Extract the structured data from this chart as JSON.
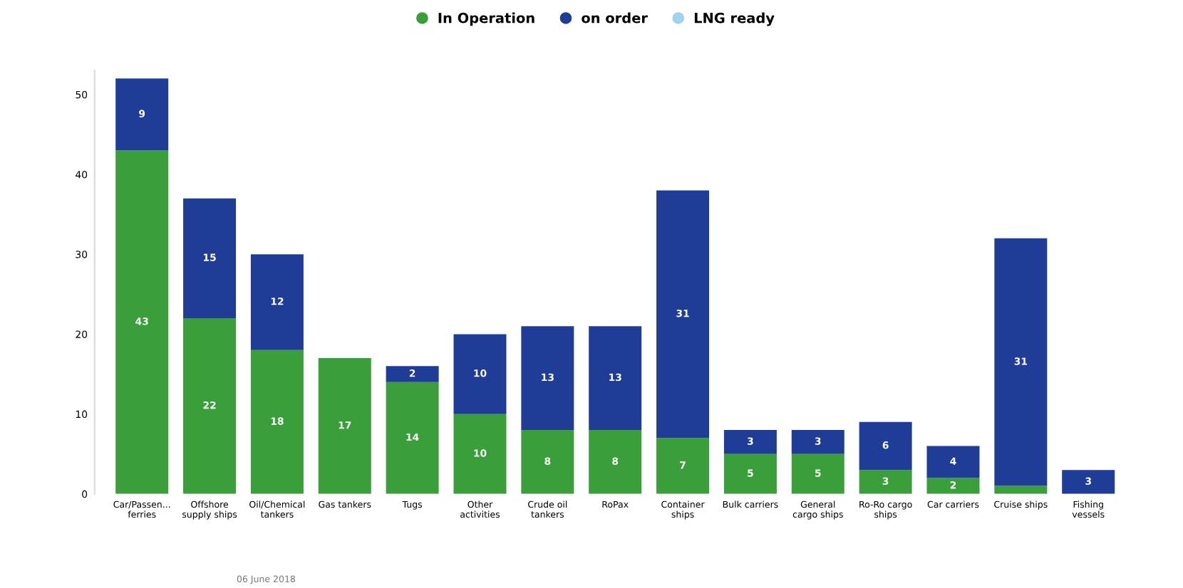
{
  "chart_data": {
    "type": "bar",
    "stacked": true,
    "categories": [
      "Car/Passen...\nferries",
      "Offshore\nsupply ships",
      "Oil/Chemical\ntankers",
      "Gas tankers",
      "Tugs",
      "Other\nactivities",
      "Crude oil\ntankers",
      "RoPax",
      "Container\nships",
      "Bulk carriers",
      "General\ncargo ships",
      "Ro-Ro cargo\nships",
      "Car carriers",
      "Cruise ships",
      "Fishing\nvessels"
    ],
    "series": [
      {
        "name": "In Operation",
        "color": "#3a9e3a",
        "values": [
          43,
          22,
          18,
          17,
          14,
          10,
          8,
          8,
          7,
          5,
          5,
          3,
          2,
          1,
          0
        ],
        "value_labels": [
          "43",
          "22",
          "18",
          "17",
          "14",
          "10",
          "8",
          "8",
          "7",
          "5",
          "5",
          "3",
          "2",
          null,
          null
        ]
      },
      {
        "name": "on order",
        "color": "#1f3d96",
        "values": [
          9,
          15,
          12,
          0,
          2,
          10,
          13,
          13,
          31,
          3,
          3,
          6,
          4,
          31,
          3
        ],
        "value_labels": [
          "9",
          "15",
          "12",
          null,
          "2",
          "10",
          "13",
          "13",
          "31",
          "3",
          "3",
          "6",
          "4",
          "31",
          "3"
        ]
      },
      {
        "name": "LNG ready",
        "color": "#9fd3f0",
        "values": [
          null,
          null,
          null,
          null,
          null,
          null,
          null,
          null,
          null,
          null,
          null,
          null,
          null,
          null,
          null
        ]
      }
    ],
    "ylim": [
      0,
      53
    ],
    "yticks": [
      0,
      10,
      20,
      30,
      40,
      50
    ],
    "grid": false,
    "legend": "top",
    "annotations": [
      "06 June 2018"
    ]
  }
}
